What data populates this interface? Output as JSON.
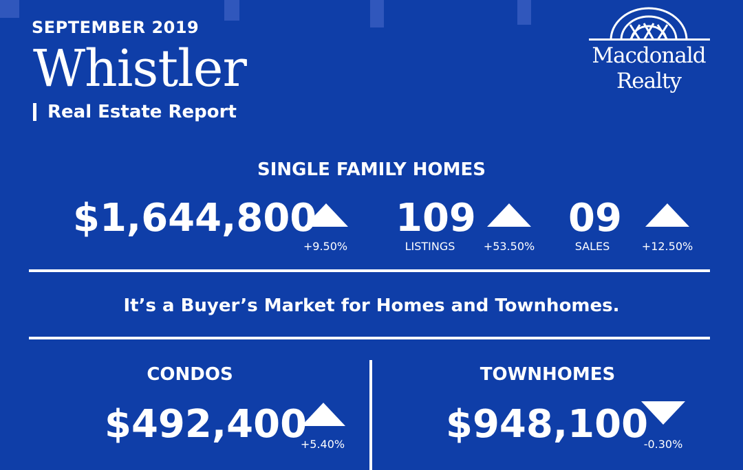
{
  "header": {
    "kicker": "SEPTEMBER 2019",
    "city": "Whistler",
    "subtitle": "Real Estate Report"
  },
  "logo": {
    "line1": "Macdonald",
    "line2": "Realty"
  },
  "single_family": {
    "heading": "SINGLE FAMILY HOMES",
    "price": "$1,644,800",
    "price_change": "+9.50%",
    "listings": "109",
    "listings_label": "LISTINGS",
    "listings_change": "+53.50%",
    "sales": "09",
    "sales_label": "SALES",
    "sales_change": "+12.50%"
  },
  "market": {
    "statement": "It’s a Buyer’s Market for Homes and Townhomes."
  },
  "condos": {
    "heading": "CONDOS",
    "price": "$492,400",
    "price_change": "+5.40%"
  },
  "townhomes": {
    "heading": "TOWNHOMES",
    "price": "$948,100",
    "price_change": "-0.30%"
  },
  "colors": {
    "background": "#0f3ea8",
    "text": "#ffffff"
  }
}
